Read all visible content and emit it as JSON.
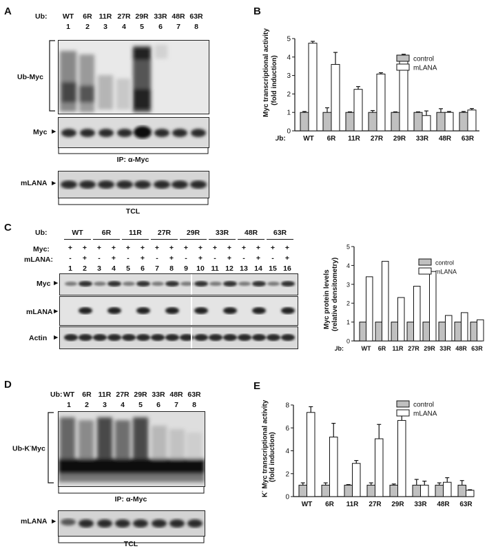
{
  "A": {
    "panel_label": "A",
    "ub_prefix": "Ub:",
    "ub_labels": [
      "WT",
      "6R",
      "11R",
      "27R",
      "29R",
      "33R",
      "48R",
      "63R"
    ],
    "lane_numbers": [
      "1",
      "2",
      "3",
      "4",
      "5",
      "6",
      "7",
      "8"
    ],
    "ub_myc_label": "Ub-Myc",
    "myc_label": "Myc",
    "ip_label": "IP: α-Myc",
    "mlana_label": "mLANA",
    "tcl_label": "TCL"
  },
  "B": {
    "panel_label": "B",
    "ub_prefix": "Ub:",
    "ylabel_line1": "Myc transcriptional activity",
    "ylabel_line2": "(fold induction)",
    "legend": [
      "control",
      "mLANA"
    ]
  },
  "C": {
    "panel_label": "C",
    "ub_prefix": "Ub:",
    "ub_groups": [
      "WT",
      "6R",
      "11R",
      "27R",
      "29R",
      "33R",
      "48R",
      "63R"
    ],
    "myc_row_label": "Myc:",
    "mlana_row_label": "mLANA:",
    "myc_signs": [
      "+",
      "+",
      "+",
      "+",
      "+",
      "+",
      "+",
      "+",
      "+",
      "+",
      "+",
      "+",
      "+",
      "+",
      "+",
      "+"
    ],
    "mlana_signs": [
      "-",
      "+",
      "-",
      "+",
      "-",
      "+",
      "-",
      "+",
      "-",
      "+",
      "-",
      "+",
      "-",
      "+",
      "-",
      "+"
    ],
    "lane_numbers": [
      "1",
      "2",
      "3",
      "4",
      "5",
      "6",
      "7",
      "8",
      "9",
      "10",
      "11",
      "12",
      "13",
      "14",
      "15",
      "16"
    ],
    "blot_myc": "Myc",
    "blot_mlana": "mLANA",
    "blot_actin": "Actin",
    "ylabel_line1": "Myc protein levels",
    "ylabel_line2": "(relative densitometry)",
    "legend": [
      "control",
      "mLANA"
    ]
  },
  "D": {
    "panel_label": "D",
    "ub_prefix": "Ub:",
    "ub_labels": [
      "WT",
      "6R",
      "11R",
      "27R",
      "29R",
      "33R",
      "48R",
      "63R"
    ],
    "lane_numbers": [
      "1",
      "2",
      "3",
      "4",
      "5",
      "6",
      "7",
      "8"
    ],
    "ubk_label_pre": "Ub-K",
    "ubk_label_sup": "-",
    "ubk_label_post": "Myc",
    "ip_label": "IP: α-Myc",
    "mlana_label": "mLANA",
    "tcl_label": "TCL"
  },
  "E": {
    "panel_label": "E",
    "ylabel_sup": "-",
    "ylabel_line1_pre": "K",
    "ylabel_line1_post": " Myc transcriptional activity",
    "ylabel_line2": "(fold induction)",
    "legend": [
      "control",
      "mLANA"
    ]
  },
  "chart_data": [
    {
      "id": "B",
      "type": "bar",
      "categories": [
        "WT",
        "6R",
        "11R",
        "27R",
        "29R",
        "33R",
        "48R",
        "63R"
      ],
      "series": [
        {
          "name": "control",
          "values": [
            1.0,
            1.0,
            1.0,
            1.0,
            1.0,
            1.0,
            1.0,
            1.0
          ],
          "errors": [
            0.05,
            0.25,
            0.03,
            0.1,
            0.03,
            0.03,
            0.2,
            0.05
          ],
          "color": "#c0c0c0"
        },
        {
          "name": "mLANA",
          "values": [
            4.75,
            3.6,
            2.25,
            3.08,
            4.05,
            0.83,
            1.0,
            1.13
          ],
          "errors": [
            0.1,
            0.65,
            0.15,
            0.07,
            0.1,
            0.25,
            0.05,
            0.08
          ],
          "color": "#ffffff"
        }
      ],
      "ylim": [
        0,
        5
      ],
      "yticks": [
        0,
        1,
        2,
        3,
        4,
        5
      ],
      "ylabel": "Myc transcriptional activity (fold induction)",
      "xlabel": "Ub:",
      "legend_position": "right"
    },
    {
      "id": "C",
      "type": "bar",
      "categories": [
        "WT",
        "6R",
        "11R",
        "27R",
        "29R",
        "33R",
        "48R",
        "63R"
      ],
      "series": [
        {
          "name": "control",
          "values": [
            1.0,
            1.0,
            1.0,
            1.0,
            1.0,
            1.0,
            1.0,
            1.0
          ],
          "color": "#c0c0c0"
        },
        {
          "name": "mLANA",
          "values": [
            3.4,
            4.22,
            2.3,
            2.9,
            3.68,
            1.35,
            1.5,
            1.12
          ],
          "color": "#ffffff"
        }
      ],
      "ylim": [
        0,
        5
      ],
      "yticks": [
        0,
        1,
        2,
        3,
        4,
        5
      ],
      "ylabel": "Myc protein levels (relative densitometry)",
      "xlabel": "Ub:",
      "legend_position": "right"
    },
    {
      "id": "E",
      "type": "bar",
      "categories": [
        "WT",
        "6R",
        "11R",
        "27R",
        "29R",
        "33R",
        "48R",
        "63R"
      ],
      "series": [
        {
          "name": "control",
          "values": [
            1.0,
            1.0,
            1.0,
            1.0,
            1.0,
            1.0,
            1.0,
            1.0
          ],
          "errors": [
            0.2,
            0.2,
            0.05,
            0.2,
            0.1,
            0.5,
            0.2,
            0.4
          ],
          "color": "#c0c0c0"
        },
        {
          "name": "mLANA",
          "values": [
            7.35,
            5.2,
            2.9,
            5.05,
            6.65,
            1.0,
            1.25,
            0.55
          ],
          "errors": [
            0.5,
            1.2,
            0.25,
            1.25,
            0.9,
            0.35,
            0.4,
            0.05
          ],
          "color": "#ffffff"
        }
      ],
      "ylim": [
        0,
        8
      ],
      "yticks": [
        0,
        2,
        4,
        6,
        8
      ],
      "ylabel": "K- Myc transcriptional activity (fold induction)",
      "legend_position": "right"
    }
  ]
}
